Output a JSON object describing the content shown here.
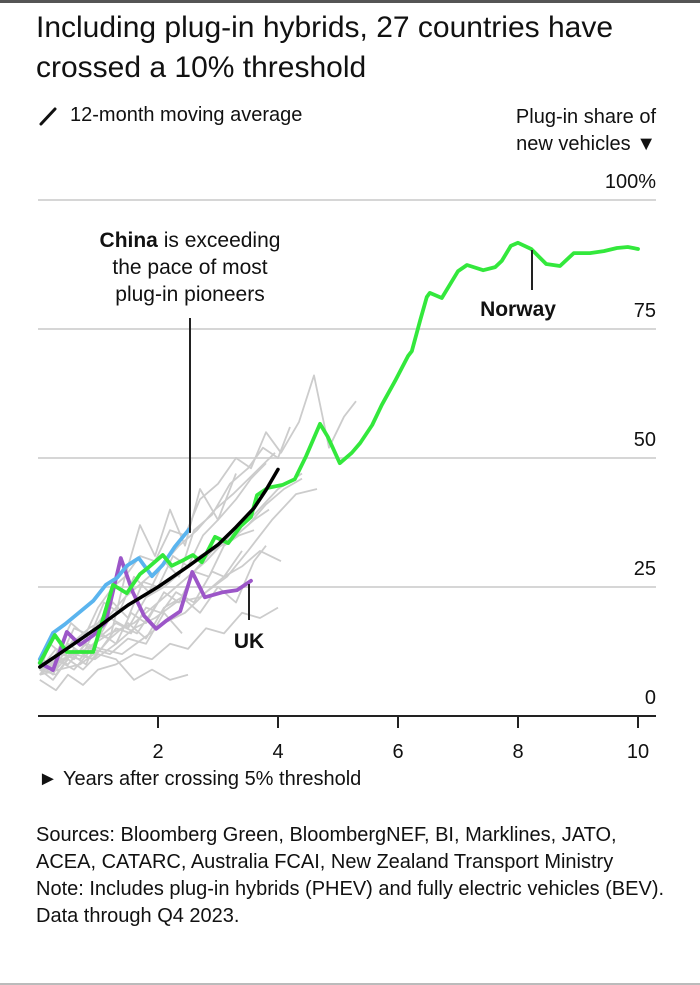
{
  "title": "Including plug-in hybrids, 27 countries have crossed a 10% threshold",
  "legend_label": "12-month moving average",
  "footer": {
    "sources": "Sources: Bloomberg Green, BloombergNEF, BI, Marklines, JATO, ACEA, CATARC, Australia FCAI, New Zealand Transport Ministry",
    "note": "Note: Includes plug-in hybrids (PHEV) and fully electric vehicles (BEV). Data through Q4 2023."
  },
  "chart_data": {
    "type": "line",
    "title": "Including plug-in hybrids, 27 countries have crossed a 10% threshold",
    "xlabel": "► Years after crossing 5% threshold",
    "ylabel": "Plug-in share of new vehicles ▼",
    "xlim": [
      0,
      10.3
    ],
    "ylim": [
      0,
      100
    ],
    "x_ticks": [
      2,
      4,
      6,
      8,
      10
    ],
    "x_tick_labels": [
      "2",
      "4",
      "6",
      "8",
      "10"
    ],
    "y_ticks": [
      0,
      25,
      50,
      75,
      100
    ],
    "y_tick_labels": [
      "0",
      "25",
      "50",
      "75",
      "100%"
    ],
    "grid": "horizontal",
    "annotations": [
      {
        "bold": "China",
        "text": " is exceeding the pace of most plug-in pioneers",
        "lines": [
          "China is exceeding",
          "the pace of most",
          "plug-in pioneers"
        ],
        "x": 2.55,
        "y": 35.5
      },
      {
        "text": "Norway",
        "x": 8.2,
        "y": 87.5
      },
      {
        "text": "UK",
        "x": 3.55,
        "y": 24.5
      }
    ],
    "series": [
      {
        "name": "Norway",
        "color": "#33e83c",
        "highlight": true,
        "x": [
          0.03,
          0.28,
          0.48,
          0.7,
          0.92,
          1.25,
          1.48,
          1.7,
          1.83,
          2.08,
          2.23,
          2.42,
          2.58,
          2.73,
          2.95,
          3.17,
          3.38,
          3.55,
          3.65,
          3.83,
          4.08,
          4.28,
          4.47,
          4.7,
          4.83,
          5.03,
          5.23,
          5.37,
          5.57,
          5.73,
          5.95,
          6.17,
          6.23,
          6.37,
          6.48,
          6.53,
          6.73,
          7.0,
          7.15,
          7.42,
          7.62,
          7.73,
          7.88,
          8.0,
          8.22,
          8.47,
          8.7,
          8.93,
          9.2,
          9.43,
          9.65,
          9.83,
          10.0
        ],
        "y": [
          10.3,
          15.7,
          12.4,
          12.4,
          12.4,
          25.4,
          23.8,
          27.5,
          28.7,
          31.2,
          29.1,
          30.2,
          31.2,
          29.8,
          34.7,
          33.5,
          36.8,
          38.6,
          42.8,
          44.2,
          44.8,
          45.9,
          50.4,
          56.6,
          54.1,
          49.0,
          51.0,
          52.9,
          56.4,
          60.3,
          64.9,
          69.8,
          70.7,
          76.7,
          81.2,
          82.0,
          81.0,
          86.2,
          87.4,
          86.4,
          87.0,
          88.2,
          91.1,
          91.7,
          90.5,
          87.6,
          87.2,
          89.7,
          89.7,
          90.1,
          90.7,
          90.9,
          90.5
        ]
      },
      {
        "name": "China",
        "color": "#5ab4ee",
        "highlight": true,
        "x": [
          0.03,
          0.25,
          0.45,
          0.68,
          0.92,
          1.13,
          1.32,
          1.48,
          1.68,
          1.9,
          2.08,
          2.28,
          2.52
        ],
        "y": [
          11.0,
          16.1,
          17.8,
          20.0,
          22.3,
          25.4,
          26.8,
          29.1,
          30.6,
          27.1,
          29.3,
          32.8,
          36.2
        ]
      },
      {
        "name": "UK",
        "color": "#9c56c8",
        "highlight": true,
        "x": [
          0.03,
          0.25,
          0.48,
          0.7,
          0.93,
          1.13,
          1.38,
          1.58,
          1.77,
          1.97,
          2.13,
          2.37,
          2.57,
          2.78,
          3.08,
          3.32,
          3.55
        ],
        "y": [
          10.3,
          8.9,
          16.3,
          13.8,
          15.7,
          18.2,
          30.6,
          24.0,
          19.4,
          16.9,
          18.4,
          20.3,
          27.9,
          23.0,
          24.0,
          24.4,
          26.2
        ]
      },
      {
        "name": "12-month moving average",
        "color": "#000000",
        "highlight": true,
        "x": [
          0.03,
          0.5,
          1.0,
          1.5,
          2.0,
          2.5,
          3.0,
          3.3,
          3.6,
          3.8,
          4.0
        ],
        "y": [
          9.5,
          13.2,
          17.2,
          21.5,
          25.0,
          29.0,
          33.2,
          36.6,
          40.3,
          43.8,
          47.8
        ]
      },
      {
        "name": "Other countries",
        "color": "#cccccc",
        "highlight": false,
        "lines": [
          {
            "x": [
              0.03,
              0.2,
              0.4,
              0.6,
              0.8,
              1.0,
              1.25,
              1.45,
              1.7,
              1.95,
              2.2,
              2.45,
              2.7,
              3.0,
              3.3,
              3.55,
              3.8,
              4.05,
              4.35,
              4.6,
              4.85,
              5.1,
              5.3
            ],
            "y": [
              9,
              14,
              12,
              17,
              16,
              21,
              25,
              27,
              31,
              30,
              36,
              35,
              42,
              45,
              50,
              48,
              55,
              51,
              57,
              66,
              52,
              58,
              61
            ]
          },
          {
            "x": [
              0.03,
              0.3,
              0.55,
              0.85,
              1.1,
              1.35,
              1.6,
              1.85,
              2.1,
              2.35,
              2.6,
              2.9,
              3.2,
              3.5,
              3.75,
              4.0,
              4.2
            ],
            "y": [
              8,
              12,
              18,
              15,
              22,
              20,
              27,
              24,
              30,
              27,
              36,
              39,
              45,
              48,
              52,
              50,
              56
            ]
          },
          {
            "x": [
              0.03,
              0.25,
              0.5,
              0.75,
              1.0,
              1.25,
              1.5,
              1.75,
              2.0,
              2.25,
              2.5,
              2.75,
              3.0,
              3.3,
              3.55,
              3.8
            ],
            "y": [
              10,
              8,
              14,
              12,
              18,
              22,
              19,
              26,
              25,
              31,
              29,
              35,
              38,
              42,
              46,
              49
            ]
          },
          {
            "x": [
              0.03,
              0.3,
              0.6,
              0.9,
              1.2,
              1.45,
              1.7,
              1.95,
              2.2,
              2.45,
              2.7,
              3.0,
              3.3
            ],
            "y": [
              9,
              13,
              11,
              16,
              15,
              27,
              37,
              31,
              40,
              33,
              44,
              38,
              47
            ]
          },
          {
            "x": [
              0.03,
              0.25,
              0.5,
              0.8,
              1.05,
              1.3,
              1.55,
              1.8,
              2.05,
              2.3,
              2.6,
              2.9,
              3.1,
              3.4
            ],
            "y": [
              8,
              11,
              10,
              14,
              13,
              17,
              16,
              21,
              20,
              24,
              22,
              28,
              27,
              32
            ]
          },
          {
            "x": [
              0.03,
              0.3,
              0.5,
              0.75,
              1.0,
              1.3,
              1.6,
              1.9,
              2.2,
              2.5,
              2.8,
              3.1,
              3.4,
              3.7,
              4.0
            ],
            "y": [
              7,
              5,
              8,
              6,
              9,
              10,
              12,
              11,
              14,
              13,
              17,
              16,
              20,
              19,
              21
            ]
          },
          {
            "x": [
              0.03,
              0.3,
              0.6,
              0.9,
              1.2,
              1.5,
              1.8,
              2.1,
              2.4,
              2.7,
              3.0,
              3.3,
              3.6,
              3.8
            ],
            "y": [
              10,
              9,
              13,
              11,
              15,
              18,
              15,
              21,
              23,
              20,
              25,
              22,
              30,
              33
            ]
          },
          {
            "x": [
              0.03,
              0.25,
              0.5,
              0.75,
              1.0,
              1.3,
              1.6,
              1.9,
              2.2,
              2.5
            ],
            "y": [
              9,
              7,
              11,
              9,
              12,
              11,
              7,
              9,
              7,
              8
            ]
          },
          {
            "x": [
              0.03,
              0.3,
              0.6,
              0.9,
              1.2,
              1.5,
              1.8,
              2.1,
              2.4,
              2.7,
              3.0,
              3.3,
              3.6,
              3.85
            ],
            "y": [
              11,
              10,
              15,
              13,
              19,
              17,
              23,
              25,
              28,
              31,
              33,
              35,
              38,
              40
            ]
          },
          {
            "x": [
              0.03,
              0.3,
              0.55,
              0.8,
              1.05,
              1.3,
              1.55,
              1.8,
              2.1,
              2.35,
              2.6,
              2.85,
              3.1,
              3.35,
              3.6
            ],
            "y": [
              9,
              8,
              12,
              10,
              16,
              14,
              20,
              18,
              24,
              22,
              28,
              27,
              33,
              35,
              36
            ]
          },
          {
            "x": [
              0.03,
              0.3,
              0.6,
              0.9,
              1.2,
              1.5,
              1.8,
              2.1,
              2.4
            ],
            "y": [
              8,
              11,
              9,
              13,
              12,
              15,
              14,
              20,
              16
            ]
          },
          {
            "x": [
              0.03,
              0.35,
              0.7,
              1.0,
              1.3,
              1.65,
              2.0,
              2.3,
              2.6,
              2.9,
              3.2,
              3.5,
              3.8,
              4.1,
              4.4
            ],
            "y": [
              10,
              12,
              11,
              15,
              18,
              16,
              22,
              25,
              28,
              32,
              34,
              37,
              41,
              44,
              46
            ]
          },
          {
            "x": [
              0.03,
              0.3,
              0.6,
              0.95,
              1.3,
              1.6,
              1.95,
              2.3,
              2.7,
              3.1,
              3.4,
              3.7,
              4.05
            ],
            "y": [
              9,
              10,
              12,
              11,
              14,
              17,
              19,
              22,
              23,
              27,
              29,
              32,
              30
            ]
          },
          {
            "x": [
              0.03,
              0.35,
              0.7,
              1.05,
              1.4,
              1.75,
              2.1,
              2.45,
              2.8,
              3.15,
              3.5,
              3.9,
              4.3,
              4.65
            ],
            "y": [
              8,
              9,
              10,
              13,
              12,
              15,
              18,
              20,
              24,
              27,
              32,
              38,
              43,
              44
            ]
          },
          {
            "x": [
              0.03,
              0.25,
              0.55,
              0.85,
              1.15,
              1.45,
              1.75,
              2.05,
              2.35,
              2.65,
              2.95,
              3.25,
              3.6,
              3.95
            ],
            "y": [
              10,
              11,
              14,
              17,
              19,
              23,
              26,
              29,
              33,
              36,
              40,
              43,
              47,
              51
            ]
          },
          {
            "x": [
              0.03,
              0.4,
              0.8,
              1.2,
              1.6,
              2.0,
              2.4,
              2.8,
              3.2,
              3.6,
              4.0,
              4.4
            ],
            "y": [
              9,
              11,
              13,
              16,
              18,
              22,
              26,
              30,
              35,
              39,
              44,
              47
            ]
          }
        ]
      }
    ]
  }
}
